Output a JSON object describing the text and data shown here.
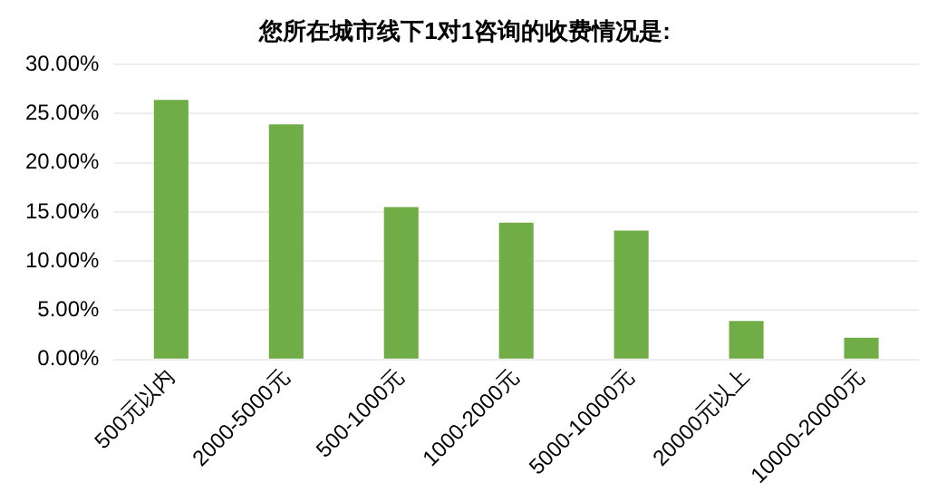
{
  "chart_data": {
    "type": "bar",
    "title": "您所在城市线下1对1咨询的收费情况是:",
    "categories": [
      "500元以内",
      "2000-5000元",
      "500-1000元",
      "1000-2000元",
      "5000-10000元",
      "20000元以上",
      "10000-20000元"
    ],
    "values": [
      26.4,
      23.9,
      15.5,
      13.9,
      13.1,
      3.9,
      2.2
    ],
    "color": "#70ad47",
    "ylim": [
      0,
      30
    ],
    "yticks": [
      {
        "value": 0,
        "label": "0.00%"
      },
      {
        "value": 5,
        "label": "5.00%"
      },
      {
        "value": 10,
        "label": "10.00%"
      },
      {
        "value": 15,
        "label": "15.00%"
      },
      {
        "value": 20,
        "label": "20.00%"
      },
      {
        "value": 25,
        "label": "25.00%"
      },
      {
        "value": 30,
        "label": "30.00%"
      }
    ],
    "grid": "y"
  }
}
